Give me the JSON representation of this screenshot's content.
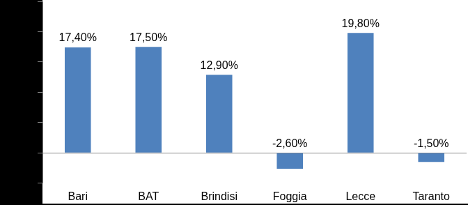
{
  "chart_data": {
    "type": "bar",
    "categories": [
      "Bari",
      "BAT",
      "Brindisi",
      "Foggia",
      "Lecce",
      "Taranto"
    ],
    "values": [
      17.4,
      17.5,
      12.9,
      -2.6,
      19.8,
      -1.5
    ],
    "value_labels": [
      "17,40%",
      "17,50%",
      "12,90%",
      "-2,60%",
      "19,80%",
      "-1,50%"
    ],
    "color": "#4f81bd",
    "ylim": [
      -5,
      25
    ],
    "yticks": [
      -5,
      0,
      5,
      10,
      15,
      20,
      25
    ],
    "grid": false,
    "data_labels": true,
    "tick_labels": "x"
  }
}
